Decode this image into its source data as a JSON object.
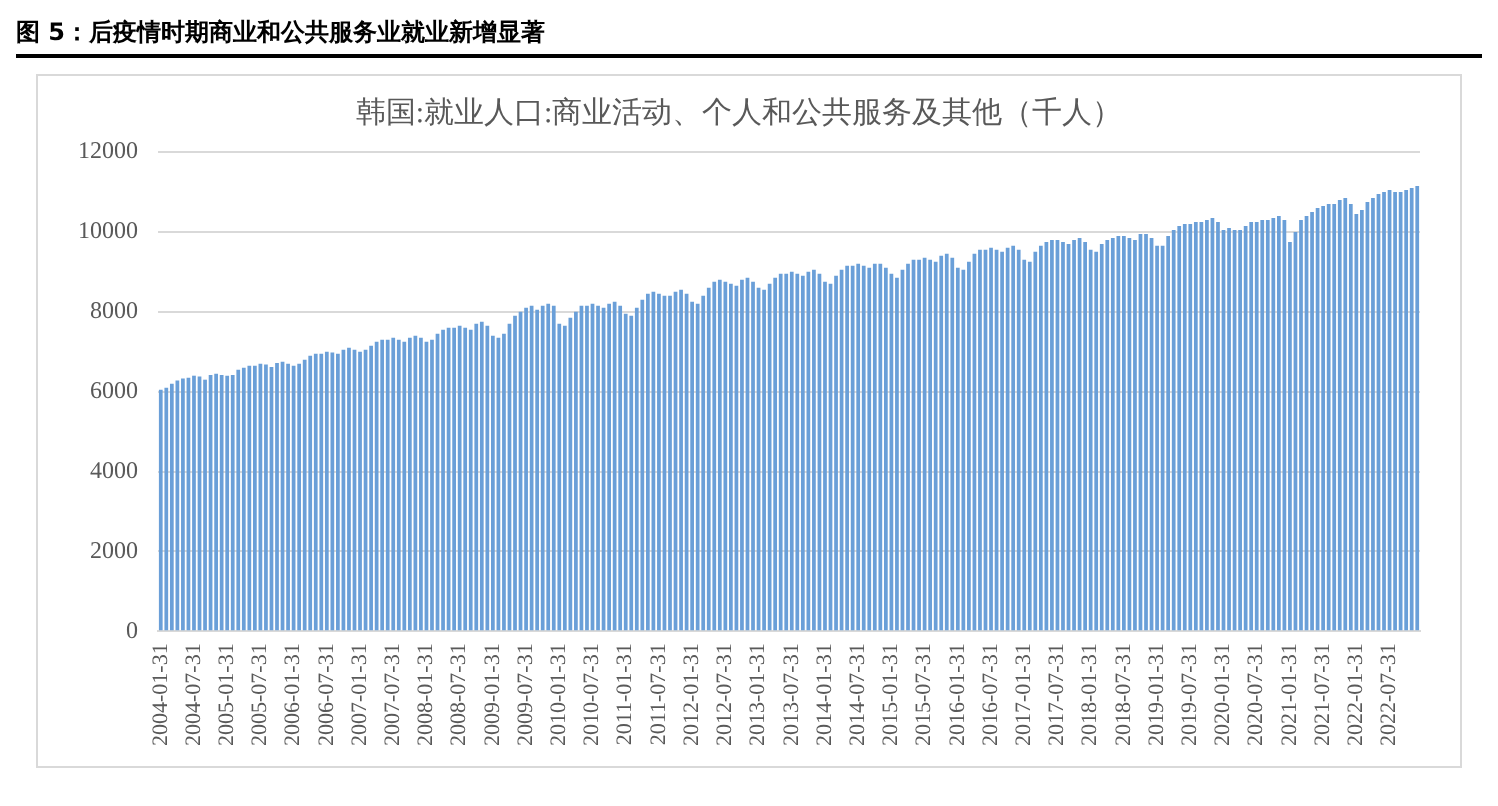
{
  "chart_data": {
    "type": "bar",
    "title": "韩国:就业人口:商业活动、个人和公共服务及其他（千人）",
    "annotations": [
      "图 5：后疫情时期商业和公共服务业就业新增显著"
    ],
    "categories": [
      "2004-01-31",
      null,
      null,
      null,
      null,
      null,
      "2004-07-31",
      null,
      null,
      null,
      null,
      null,
      "2005-01-31",
      null,
      null,
      null,
      null,
      null,
      "2005-07-31",
      null,
      null,
      null,
      null,
      null,
      "2006-01-31",
      null,
      null,
      null,
      null,
      null,
      "2006-07-31",
      null,
      null,
      null,
      null,
      null,
      "2007-01-31",
      null,
      null,
      null,
      null,
      null,
      "2007-07-31",
      null,
      null,
      null,
      null,
      null,
      "2008-01-31",
      null,
      null,
      null,
      null,
      null,
      "2008-07-31",
      null,
      null,
      null,
      null,
      null,
      "2009-01-31",
      null,
      null,
      null,
      null,
      null,
      "2009-07-31",
      null,
      null,
      null,
      null,
      null,
      "2010-01-31",
      null,
      null,
      null,
      null,
      null,
      "2010-07-31",
      null,
      null,
      null,
      null,
      null,
      "2011-01-31",
      null,
      null,
      null,
      null,
      null,
      "2011-07-31",
      null,
      null,
      null,
      null,
      null,
      "2012-01-31",
      null,
      null,
      null,
      null,
      null,
      "2012-07-31",
      null,
      null,
      null,
      null,
      null,
      "2013-01-31",
      null,
      null,
      null,
      null,
      null,
      "2013-07-31",
      null,
      null,
      null,
      null,
      null,
      "2014-01-31",
      null,
      null,
      null,
      null,
      null,
      "2014-07-31",
      null,
      null,
      null,
      null,
      null,
      "2015-01-31",
      null,
      null,
      null,
      null,
      null,
      "2015-07-31",
      null,
      null,
      null,
      null,
      null,
      "2016-01-31",
      null,
      null,
      null,
      null,
      null,
      "2016-07-31",
      null,
      null,
      null,
      null,
      null,
      "2017-01-31",
      null,
      null,
      null,
      null,
      null,
      "2017-07-31",
      null,
      null,
      null,
      null,
      null,
      "2018-01-31",
      null,
      null,
      null,
      null,
      null,
      "2018-07-31",
      null,
      null,
      null,
      null,
      null,
      "2019-01-31",
      null,
      null,
      null,
      null,
      null,
      "2019-07-31",
      null,
      null,
      null,
      null,
      null,
      "2020-01-31",
      null,
      null,
      null,
      null,
      null,
      "2020-07-31",
      null,
      null,
      null,
      null,
      null,
      "2021-01-31",
      null,
      null,
      null,
      null,
      null,
      "2021-07-31",
      null,
      null,
      null,
      null,
      null,
      "2022-01-31",
      null,
      null,
      null,
      null,
      null,
      "2022-07-31",
      null,
      null,
      null,
      null,
      null
    ],
    "values": [
      6050,
      6100,
      6200,
      6280,
      6330,
      6350,
      6400,
      6380,
      6300,
      6420,
      6450,
      6420,
      6400,
      6420,
      6550,
      6600,
      6650,
      6650,
      6700,
      6680,
      6620,
      6720,
      6750,
      6700,
      6650,
      6700,
      6800,
      6900,
      6950,
      6950,
      7000,
      6980,
      6950,
      7050,
      7100,
      7050,
      7000,
      7050,
      7150,
      7250,
      7300,
      7300,
      7350,
      7300,
      7250,
      7350,
      7400,
      7350,
      7250,
      7300,
      7450,
      7550,
      7600,
      7600,
      7650,
      7600,
      7550,
      7700,
      7750,
      7650,
      7400,
      7350,
      7450,
      7700,
      7900,
      8000,
      8100,
      8150,
      8050,
      8150,
      8200,
      8150,
      7700,
      7650,
      7850,
      8000,
      8150,
      8150,
      8200,
      8150,
      8100,
      8200,
      8250,
      8150,
      7950,
      7900,
      8100,
      8300,
      8450,
      8500,
      8450,
      8400,
      8400,
      8500,
      8550,
      8450,
      8250,
      8200,
      8400,
      8600,
      8750,
      8800,
      8750,
      8700,
      8650,
      8800,
      8850,
      8750,
      8600,
      8550,
      8700,
      8850,
      8950,
      8950,
      9000,
      8950,
      8900,
      9000,
      9050,
      8950,
      8750,
      8700,
      8900,
      9050,
      9150,
      9150,
      9200,
      9150,
      9100,
      9200,
      9200,
      9100,
      8950,
      8850,
      9050,
      9200,
      9300,
      9300,
      9350,
      9300,
      9250,
      9400,
      9450,
      9350,
      9100,
      9050,
      9250,
      9450,
      9550,
      9550,
      9600,
      9550,
      9500,
      9600,
      9650,
      9550,
      9300,
      9250,
      9500,
      9650,
      9750,
      9800,
      9800,
      9750,
      9700,
      9800,
      9850,
      9750,
      9550,
      9500,
      9700,
      9800,
      9850,
      9900,
      9900,
      9850,
      9800,
      9950,
      9950,
      9850,
      9650,
      9650,
      9900,
      10050,
      10150,
      10200,
      10200,
      10250,
      10250,
      10300,
      10350,
      10250,
      10050,
      10100,
      10050,
      10050,
      10150,
      10250,
      10250,
      10300,
      10300,
      10350,
      10400,
      10300,
      9750,
      10000,
      10300,
      10400,
      10500,
      10600,
      10650,
      10700,
      10700,
      10800,
      10850,
      10700,
      10450,
      10550,
      10750,
      10850,
      10950,
      11000,
      11050,
      11000,
      11000,
      11050,
      11100,
      11150
    ],
    "color": "#6a9fd8",
    "ylim": [
      0,
      12000
    ],
    "yticks": [
      0,
      2000,
      4000,
      6000,
      8000,
      10000,
      12000
    ],
    "grid": "y",
    "legend": false
  }
}
